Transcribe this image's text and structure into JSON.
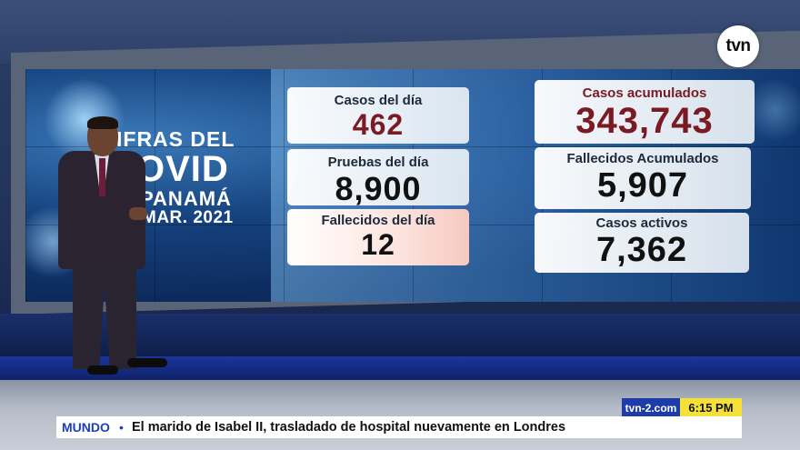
{
  "wall": {
    "title_line1": "IFRAS DEL",
    "title_line2": "OVID",
    "title_line3": "PANAMÁ",
    "title_line4": "MAR. 2021"
  },
  "stats": {
    "casos_dia": {
      "label": "Casos del día",
      "value": "462"
    },
    "pruebas_dia": {
      "label": "Pruebas del día",
      "value": "8,900"
    },
    "fallecidos_dia": {
      "label": "Fallecidos del día",
      "value": "12"
    },
    "casos_acumulados": {
      "label": "Casos acumulados",
      "value": "343,743"
    },
    "fallecidos_acumulados": {
      "label": "Fallecidos Acumulados",
      "value": "5,907"
    },
    "casos_activos": {
      "label": "Casos activos",
      "value": "7,362"
    }
  },
  "channel": {
    "logo": "tvn",
    "site": "tvn-2.com",
    "time": "6:15 PM"
  },
  "ticker": {
    "section": "MUNDO",
    "bullet": "•",
    "headline": "El marido de Isabel II, trasladado de hospital nuevamente en Londres"
  },
  "colors": {
    "accent_blue": "#1b3fbf",
    "time_yellow": "#f6e03a",
    "highlight_red": "#7a1b24"
  }
}
